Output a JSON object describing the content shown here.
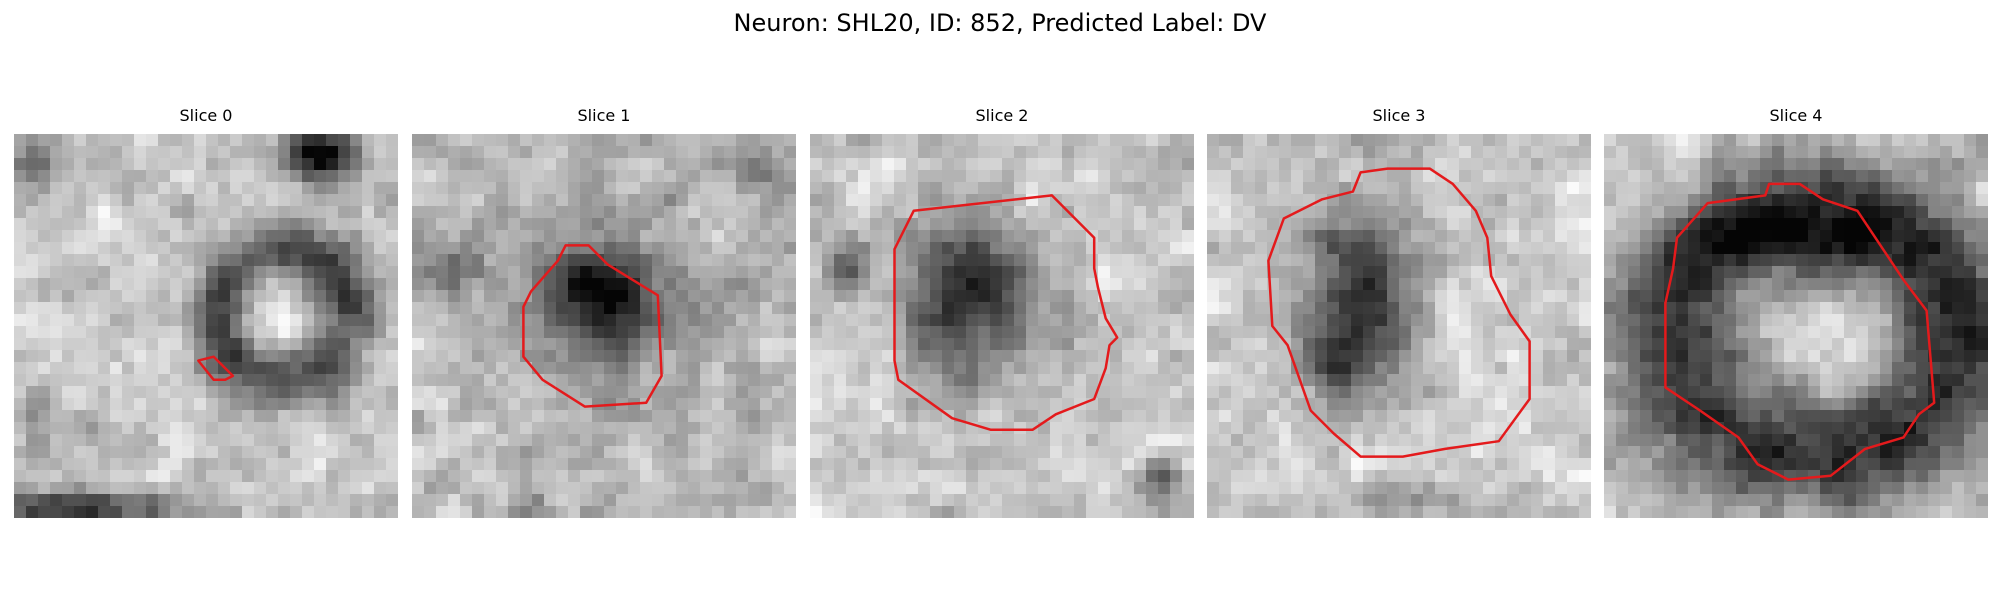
{
  "figure": {
    "title": "Neuron: SHL20, ID: 852, Predicted Label: DV"
  },
  "panels": [
    {
      "title": "Slice 0"
    },
    {
      "title": "Slice 1"
    },
    {
      "title": "Slice 2"
    },
    {
      "title": "Slice 3"
    },
    {
      "title": "Slice 4"
    }
  ],
  "colors": {
    "contour": "#e41a1c",
    "background": "#ffffff",
    "colormap": "grayscale"
  }
}
